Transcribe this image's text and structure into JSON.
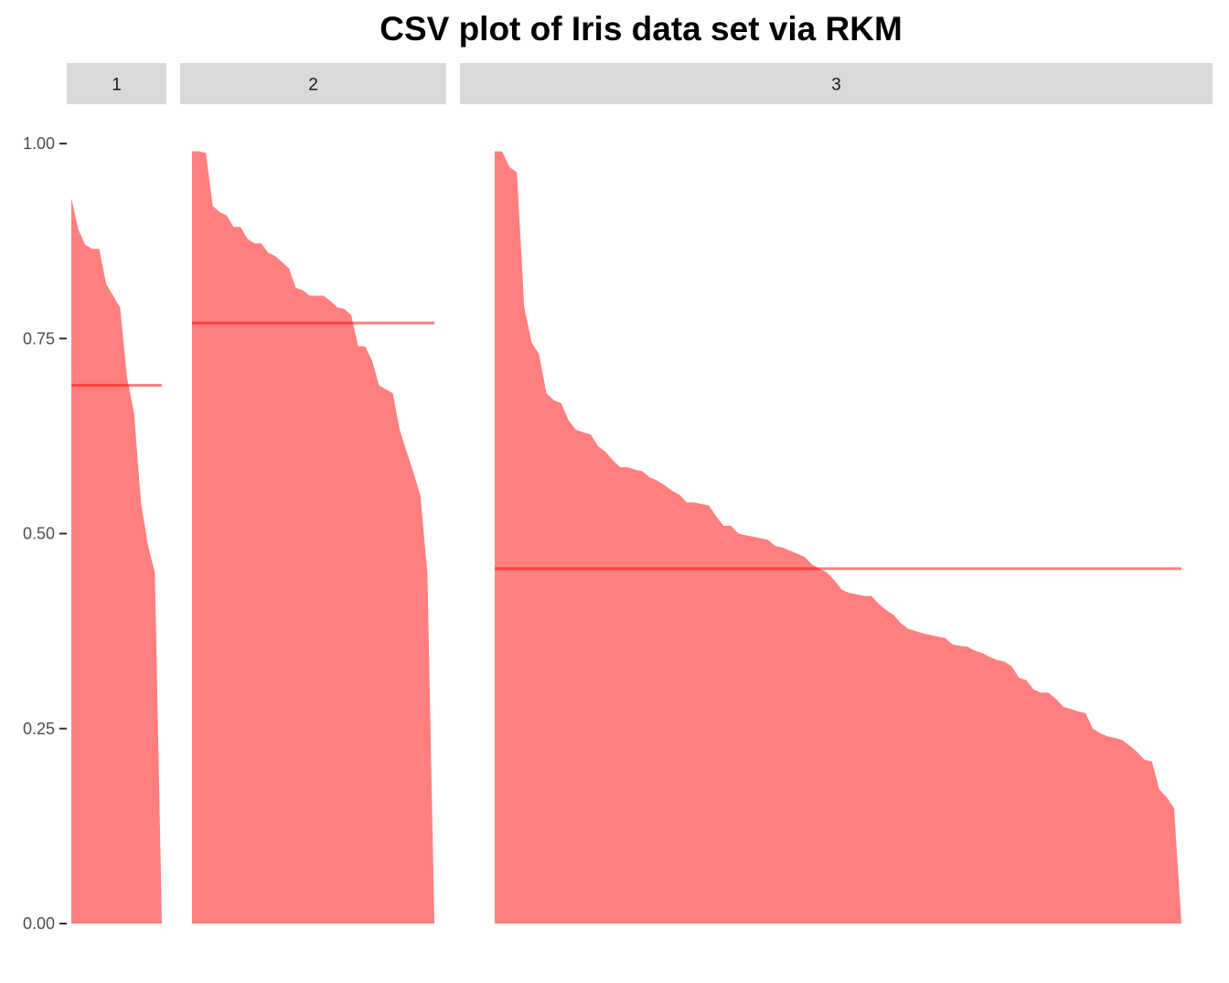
{
  "chart_data": {
    "type": "area",
    "title": "CSV plot of Iris data set via RKM",
    "xlabel": "",
    "ylabel": "",
    "ylim": [
      0,
      1
    ],
    "y_ticks": [
      "0.00",
      "0.25",
      "0.50",
      "0.75",
      "1.00"
    ],
    "y_tick_values": [
      0,
      0.25,
      0.5,
      0.75,
      1.0
    ],
    "grid": false,
    "fill_color": "#ff0000",
    "fill_opacity": 0.5,
    "strip_color": "#d9d9d9",
    "panels": [
      {
        "label": "1",
        "mean": 0.69,
        "values": [
          0.93,
          0.89,
          0.87,
          0.865,
          0.865,
          0.82,
          0.805,
          0.79,
          0.7,
          0.655,
          0.54,
          0.485,
          0.45,
          0.0
        ]
      },
      {
        "label": "2",
        "mean": 0.77,
        "values": [
          0.99,
          0.99,
          0.988,
          0.92,
          0.912,
          0.908,
          0.893,
          0.893,
          0.878,
          0.872,
          0.872,
          0.86,
          0.856,
          0.848,
          0.84,
          0.815,
          0.812,
          0.805,
          0.805,
          0.805,
          0.798,
          0.79,
          0.788,
          0.78,
          0.74,
          0.74,
          0.722,
          0.69,
          0.685,
          0.68,
          0.633,
          0.605,
          0.578,
          0.548,
          0.448,
          0.0
        ]
      },
      {
        "label": "3",
        "mean": 0.455,
        "values": [
          0.99,
          0.99,
          0.97,
          0.963,
          0.79,
          0.745,
          0.73,
          0.68,
          0.671,
          0.667,
          0.645,
          0.633,
          0.63,
          0.627,
          0.612,
          0.605,
          0.594,
          0.585,
          0.585,
          0.582,
          0.58,
          0.572,
          0.568,
          0.562,
          0.555,
          0.55,
          0.54,
          0.54,
          0.538,
          0.536,
          0.522,
          0.51,
          0.51,
          0.5,
          0.498,
          0.496,
          0.494,
          0.492,
          0.484,
          0.482,
          0.478,
          0.474,
          0.47,
          0.46,
          0.455,
          0.45,
          0.44,
          0.428,
          0.424,
          0.422,
          0.42,
          0.42,
          0.41,
          0.402,
          0.396,
          0.385,
          0.378,
          0.375,
          0.372,
          0.37,
          0.368,
          0.366,
          0.358,
          0.356,
          0.355,
          0.35,
          0.347,
          0.342,
          0.338,
          0.336,
          0.33,
          0.315,
          0.312,
          0.3,
          0.296,
          0.296,
          0.288,
          0.278,
          0.275,
          0.272,
          0.27,
          0.25,
          0.244,
          0.24,
          0.238,
          0.235,
          0.228,
          0.22,
          0.21,
          0.208,
          0.172,
          0.162,
          0.148,
          0.0
        ]
      }
    ]
  }
}
